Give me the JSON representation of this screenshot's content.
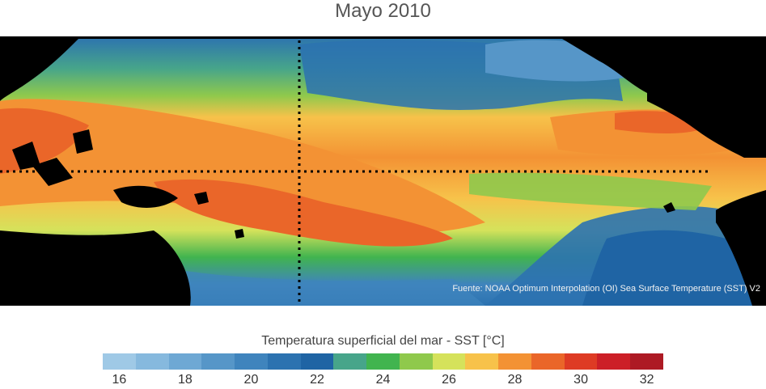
{
  "title": "Mayo 2010",
  "source_text": "Fuente: NOAA Optimum Interpolation (OI) Sea Surface Temperature (SST) V2",
  "colorbar": {
    "title": "Temperatura superficial del mar - SST  [°C]",
    "ticks": [
      "16",
      "18",
      "20",
      "22",
      "24",
      "26",
      "28",
      "30",
      "32"
    ],
    "colors": [
      "#9fc9e6",
      "#86b9de",
      "#6ea8d4",
      "#5696c8",
      "#3f84bd",
      "#2c72b0",
      "#1f64a4",
      "#47a58a",
      "#41b44f",
      "#8fc94c",
      "#d5e25b",
      "#f7c24a",
      "#f39234",
      "#ea6629",
      "#de3b24",
      "#cc1f27",
      "#ad1a24"
    ]
  }
}
